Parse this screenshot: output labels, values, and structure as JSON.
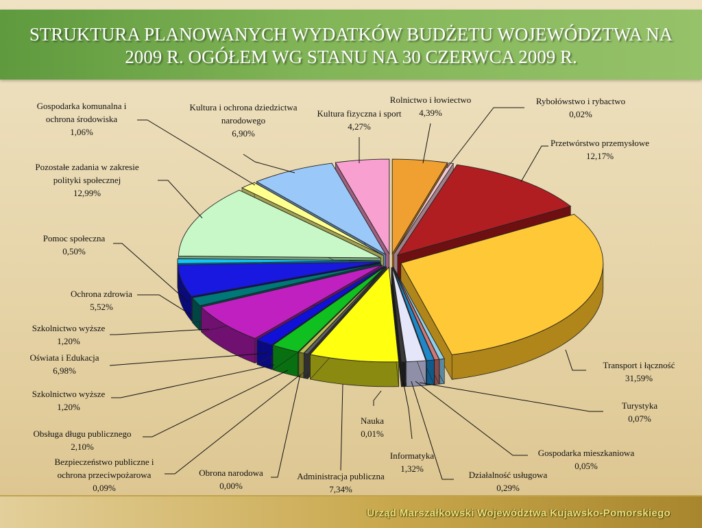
{
  "title_line1": "STRUKTURA PLANOWANYCH WYDATKÓW BUDŻETU WOJEWÓDZTWA NA",
  "title_line2": "2009 R. OGÓŁEM WG STANU NA 30 CZERWCA 2009 R.",
  "footer": "Urząd Marszałkowski Województwa Kujawsko-Pomorskiego",
  "chart_data": {
    "type": "pie",
    "variant": "exploded-3d",
    "slices": [
      {
        "label": [
          "Rolnictwo i łowiectwo"
        ],
        "value_text": "4,39%",
        "value": 4.39,
        "color": "#f0a030",
        "side": "#b06a10"
      },
      {
        "label": [
          "Rybołówstwo i rybactwo"
        ],
        "value_text": "0,02%",
        "value": 0.02,
        "color": "#f2c8d0",
        "side": "#a08088"
      },
      {
        "label": [
          "Przetwórstwo przemysłowe"
        ],
        "value_text": "12,17%",
        "value": 12.17,
        "color": "#b01e22",
        "side": "#6e1012"
      },
      {
        "label": [
          "Transport i łączność"
        ],
        "value_text": "31,59%",
        "value": 31.59,
        "color": "#ffc836",
        "side": "#b0861a"
      },
      {
        "label": [
          "Turystyka"
        ],
        "value_text": "0,07%",
        "value": 0.07,
        "color": "#8fd0e8",
        "side": "#5a8aa0"
      },
      {
        "label": [
          "Gospodarka mieszkaniowa"
        ],
        "value_text": "0,05%",
        "value": 0.05,
        "color": "#d07878",
        "side": "#8a4a4a"
      },
      {
        "label": [
          "Działalność usługowa"
        ],
        "value_text": "0,29%",
        "value": 0.29,
        "color": "#1e88c8",
        "side": "#0f5a8a"
      },
      {
        "label": [
          "Informatyka"
        ],
        "value_text": "1,32%",
        "value": 1.32,
        "color": "#e6e6fa",
        "side": "#8f8fa8"
      },
      {
        "label": [
          "Nauka"
        ],
        "value_text": "0,01%",
        "value": 0.01,
        "color": "#3a3a3a",
        "side": "#1a1a1a"
      },
      {
        "label": [
          "Administracja publiczna"
        ],
        "value_text": "7,34%",
        "value": 7.34,
        "color": "#ffff10",
        "side": "#8a8a10"
      },
      {
        "label": [
          "Obrona narodowa"
        ],
        "value_text": "0,00%",
        "value": 0.0,
        "color": "#606060",
        "side": "#303030"
      },
      {
        "label": [
          "Bezpieczeństwo publiczne i",
          "ochrona przeciwpożarowa"
        ],
        "value_text": "0,09%",
        "value": 0.09,
        "color": "#bfbf50",
        "side": "#707020"
      },
      {
        "label": [
          "Obsługa długu publicznego"
        ],
        "value_text": "2,10%",
        "value": 2.1,
        "color": "#10c020",
        "side": "#087010"
      },
      {
        "label": [
          "Szkolnictwo wyższe"
        ],
        "value_text": "1,20%",
        "value": 1.2,
        "color": "#1010d8",
        "side": "#0a0a80"
      },
      {
        "label": [
          "Oświata i Edukacja"
        ],
        "value_text": "6,98%",
        "value": 6.98,
        "color": "#c020c0",
        "side": "#701070"
      },
      {
        "label": [
          "Szkolnictwo wyższe"
        ],
        "value_text": "1,20%",
        "value": 1.2,
        "color": "#007878",
        "side": "#004444"
      },
      {
        "label": [
          "Ochrona zdrowia"
        ],
        "value_text": "5,52%",
        "value": 5.52,
        "color": "#1818e0",
        "side": "#0a0a7a"
      },
      {
        "label": [
          "Pomoc społeczna"
        ],
        "value_text": "0,50%",
        "value": 0.5,
        "color": "#10c8f8",
        "side": "#0a7890"
      },
      {
        "label": [
          "Pozostałe zadania w zakresie",
          "polityki społecznej"
        ],
        "value_text": "12,99%",
        "value": 12.99,
        "color": "#c8f8c8",
        "side": "#78a078"
      },
      {
        "label": [
          "Gospodarka komunalna i",
          "ochrona środowiska"
        ],
        "value_text": "1,06%",
        "value": 1.06,
        "color": "#ffff90",
        "side": "#a0a050"
      },
      {
        "label": [
          "Kultura i ochrona dziedzictwa",
          "narodowego"
        ],
        "value_text": "6,90%",
        "value": 6.9,
        "color": "#9ac8f8",
        "side": "#5a7ea0"
      },
      {
        "label": [
          "Kultura fizyczna i sport"
        ],
        "value_text": "4,27%",
        "value": 4.27,
        "color": "#f8a0d0",
        "side": "#a06080"
      }
    ]
  }
}
